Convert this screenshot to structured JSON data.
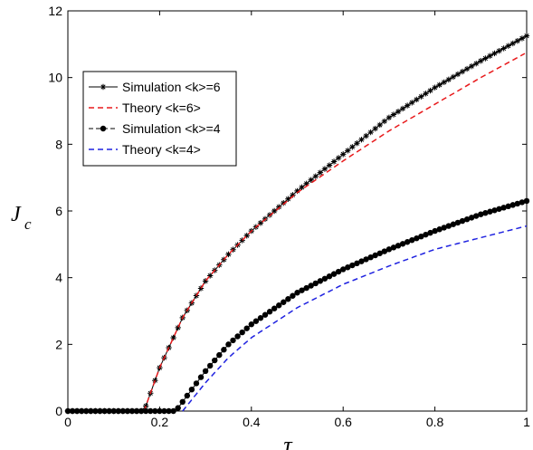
{
  "chart_data": {
    "type": "line",
    "title": "",
    "xlabel": "τ",
    "ylabel": "J",
    "ylabel_sub": "c",
    "xlim": [
      0,
      1
    ],
    "ylim": [
      0,
      12
    ],
    "xticks": [
      "0",
      "0.2",
      "0.4",
      "0.6",
      "0.8",
      "1"
    ],
    "yticks": [
      "0",
      "2",
      "4",
      "6",
      "8",
      "10",
      "12"
    ],
    "grid": false,
    "legend_position": "upper-left",
    "series": [
      {
        "name": "Simulation <k>=6",
        "color": "#000000",
        "style": "solid-asterisk",
        "threshold": 0.166,
        "x": [
          0,
          0.1,
          0.166,
          0.2,
          0.25,
          0.3,
          0.35,
          0.4,
          0.5,
          0.6,
          0.7,
          0.8,
          0.9,
          1.0
        ],
        "y": [
          0,
          0,
          0,
          1.3,
          2.8,
          3.9,
          4.7,
          5.4,
          6.6,
          7.7,
          8.8,
          9.7,
          10.5,
          11.25
        ]
      },
      {
        "name": "Theory <k=6>",
        "color": "#e8191b",
        "style": "dashed",
        "threshold": 0.166,
        "x": [
          0.166,
          0.2,
          0.25,
          0.3,
          0.35,
          0.4,
          0.5,
          0.6,
          0.7,
          0.8,
          0.9,
          1.0
        ],
        "y": [
          0,
          1.3,
          2.8,
          3.9,
          4.7,
          5.4,
          6.55,
          7.5,
          8.4,
          9.2,
          10.0,
          10.75
        ]
      },
      {
        "name": "Simulation <k>=4",
        "color": "#000000",
        "style": "solid-dot",
        "threshold": 0.235,
        "x": [
          0,
          0.1,
          0.235,
          0.3,
          0.35,
          0.4,
          0.5,
          0.6,
          0.7,
          0.8,
          0.9,
          1.0
        ],
        "y": [
          0,
          0,
          0,
          1.2,
          2.0,
          2.6,
          3.55,
          4.25,
          4.85,
          5.4,
          5.9,
          6.3
        ]
      },
      {
        "name": "Theory <k=4>",
        "color": "#1f22e0",
        "style": "dashed",
        "threshold": 0.25,
        "x": [
          0.25,
          0.3,
          0.35,
          0.4,
          0.5,
          0.6,
          0.7,
          0.8,
          0.9,
          1.0
        ],
        "y": [
          0,
          0.85,
          1.6,
          2.2,
          3.1,
          3.8,
          4.35,
          4.85,
          5.2,
          5.55
        ]
      }
    ]
  }
}
